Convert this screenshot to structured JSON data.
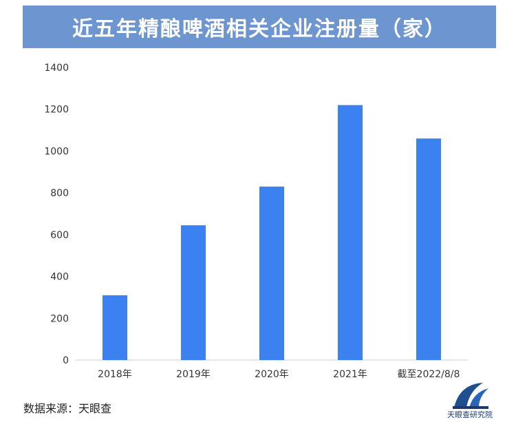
{
  "title": "近五年精酿啤酒相关企业注册量（家）",
  "source": "数据来源：天眼查",
  "brand": {
    "text": "天眼查研究院",
    "icon": "tianyancha-logo-icon"
  },
  "colors": {
    "banner": "#6d95cf",
    "bar": "#3b82f0",
    "axis_text": "#333333"
  },
  "chart_data": {
    "type": "bar",
    "categories": [
      "2018年",
      "2019年",
      "2020年",
      "2021年",
      "截至2022/8/8"
    ],
    "values": [
      310,
      645,
      830,
      1220,
      1060
    ],
    "ylim": [
      0,
      1400
    ],
    "yticks": [
      0,
      200,
      400,
      600,
      800,
      1000,
      1200,
      1400
    ],
    "ytick_labels": [
      "0",
      "200",
      "400",
      "600",
      "800",
      "1000",
      "1200",
      "1400"
    ],
    "grid": false,
    "legend": "none",
    "xlabel": "",
    "ylabel": ""
  }
}
